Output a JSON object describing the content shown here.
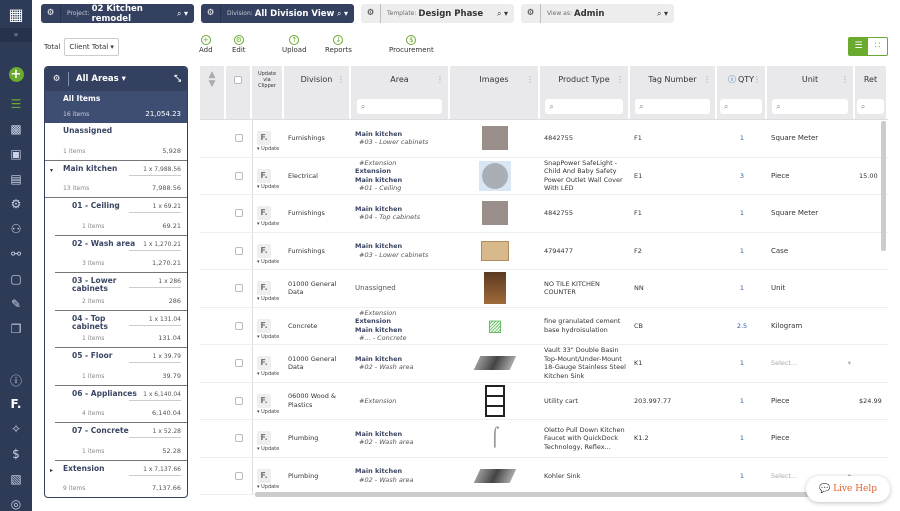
{
  "topbar": {
    "project": {
      "label": "Project:",
      "value": "02 Kitchen remodel"
    },
    "division": {
      "label": "Division:",
      "value": "All Division View"
    },
    "template": {
      "label": "Template:",
      "value": "Design Phase"
    },
    "view_as": {
      "label": "View as:",
      "value": "Admin"
    }
  },
  "toolbar": {
    "total_label": "Total",
    "total_value": "Client Total",
    "add": "Add",
    "edit": "Edit",
    "upload": "Upload",
    "reports": "Reports",
    "procurement": "Procurement"
  },
  "colors": {
    "navy": "#2e3b57",
    "accent": "#6aaa2f",
    "qty_link": "#2f5fa0",
    "live_help": "#e0612a"
  },
  "areas_panel": {
    "title": "All Areas",
    "items": [
      {
        "name": "All Items",
        "count": "16 items",
        "total": "21,054.23",
        "selected": true
      },
      {
        "name": "Unassigned",
        "count": "1 items",
        "total": "5,928"
      },
      {
        "name": "Main kitchen",
        "count": "13 items",
        "mult": "1 x 7,988.56",
        "total": "7,988.56",
        "caret": "▾"
      },
      {
        "name": "01 - Ceiling",
        "count": "1 items",
        "mult": "1 x 69.21",
        "total": "69.21",
        "sub": true
      },
      {
        "name": "02 - Wash area",
        "count": "3 items",
        "mult": "1 x 1,270.21",
        "total": "1,270.21",
        "sub": true
      },
      {
        "name": "03 - Lower cabinets",
        "count": "2 items",
        "mult": "1 x 286",
        "total": "286",
        "sub": true
      },
      {
        "name": "04 - Top cabinets",
        "count": "1 items",
        "mult": "1 x 131.04",
        "total": "131.04",
        "sub": true
      },
      {
        "name": "05 - Floor",
        "count": "1 items",
        "mult": "1 x 39.79",
        "total": "39.79",
        "sub": true
      },
      {
        "name": "06 - Appliances",
        "count": "4 items",
        "mult": "1 x 6,140.04",
        "total": "6,140.04",
        "sub": true
      },
      {
        "name": "07 - Concrete",
        "count": "1 items",
        "mult": "1 x 52.28",
        "total": "52.28",
        "sub": true
      },
      {
        "name": "Extension",
        "count": "9 items",
        "mult": "1 x 7,137.66",
        "total": "7,137.66",
        "caret": "▸"
      }
    ]
  },
  "table": {
    "columns": [
      "",
      "",
      "Update via Clipper",
      "Division",
      "Area",
      "Images",
      "Product Type",
      "Tag Number",
      "QTY",
      "Unit",
      "Ret"
    ],
    "update_label": "Update",
    "clipper_icon": "F.",
    "rows": [
      {
        "division": "Furnishings",
        "area": [
          [
            "b",
            "Main kitchen"
          ],
          [
            "i",
            "#03 - Lower cabinets"
          ]
        ],
        "image": "cabinet-gray",
        "product": "4842755",
        "tag": "F1",
        "qty": "1",
        "unit": "Square Meter",
        "ret": ""
      },
      {
        "division": "Electrical",
        "area": [
          [
            "i",
            "#Extension"
          ],
          [
            "b",
            "Extension"
          ],
          [
            "b",
            "Main kitchen"
          ],
          [
            "i",
            "#01 - Ceiling"
          ]
        ],
        "image": "outlet-light",
        "product": "SnapPower SafeLight - Child And Baby Safety Power Outlet Wall Cover With LED",
        "tag": "E1",
        "qty": "3",
        "unit": "Piece",
        "ret": "15.00"
      },
      {
        "division": "Furnishings",
        "area": [
          [
            "b",
            "Main kitchen"
          ],
          [
            "i",
            "#04 - Top cabinets"
          ]
        ],
        "image": "cabinet-gray",
        "product": "4842755",
        "tag": "F1",
        "qty": "1",
        "unit": "Square Meter",
        "ret": ""
      },
      {
        "division": "Furnishings",
        "area": [
          [
            "b",
            "Main kitchen"
          ],
          [
            "i",
            "#03 - Lower cabinets"
          ]
        ],
        "image": "cabinet-wood",
        "product": "4794477",
        "tag": "F2",
        "qty": "1",
        "unit": "Case",
        "ret": ""
      },
      {
        "division": "01000 General Data",
        "area": [
          [
            "n",
            "Unassigned"
          ]
        ],
        "image": "kitchen-photo",
        "product": "NO TILE KITCHEN COUNTER",
        "tag": "NN",
        "qty": "1",
        "unit": "Unit",
        "ret": ""
      },
      {
        "division": "Concrete",
        "area": [
          [
            "i",
            "#Extension"
          ],
          [
            "b",
            "Extension"
          ],
          [
            "b",
            "Main kitchen"
          ],
          [
            "i",
            "#... - Concrete"
          ]
        ],
        "image": "add-image",
        "product": "fine granulated cement base hydroisulation",
        "tag": "CB",
        "qty": "2.5",
        "unit": "Kilogram",
        "ret": ""
      },
      {
        "division": "01000 General Data",
        "area": [
          [
            "b",
            "Main kitchen"
          ],
          [
            "i",
            "#02 - Wash area"
          ]
        ],
        "image": "sink",
        "product": "Vault 33\" Double Basin Top-Mount/Under-Mount 18-Gauge Stainless Steel Kitchen Sink",
        "tag": "K1",
        "qty": "1",
        "unit": "Select...",
        "unit_select": true,
        "ret": ""
      },
      {
        "division": "06000 Wood & Plastics",
        "area": [
          [
            "i",
            "#Extension"
          ]
        ],
        "image": "cart",
        "product": "Utility cart",
        "tag": "203.997.77",
        "qty": "1",
        "unit": "Piece",
        "ret": "$24.99"
      },
      {
        "division": "Plumbing",
        "area": [
          [
            "b",
            "Main kitchen"
          ],
          [
            "i",
            "#02 - Wash area"
          ]
        ],
        "image": "faucet",
        "product": "Oletto Pull Down Kitchen Faucet with QuickDock Technology, Reflex...",
        "tag": "K1.2",
        "qty": "1",
        "unit": "Piece",
        "ret": ""
      },
      {
        "division": "Plumbing",
        "area": [
          [
            "b",
            "Main kitchen"
          ],
          [
            "i",
            "#02 - Wash area"
          ]
        ],
        "image": "sink",
        "product": "Kohler Sink",
        "tag": "",
        "qty": "1",
        "unit": "Select...",
        "unit_select": true,
        "ret": ""
      }
    ]
  },
  "live_help": "Live Help"
}
